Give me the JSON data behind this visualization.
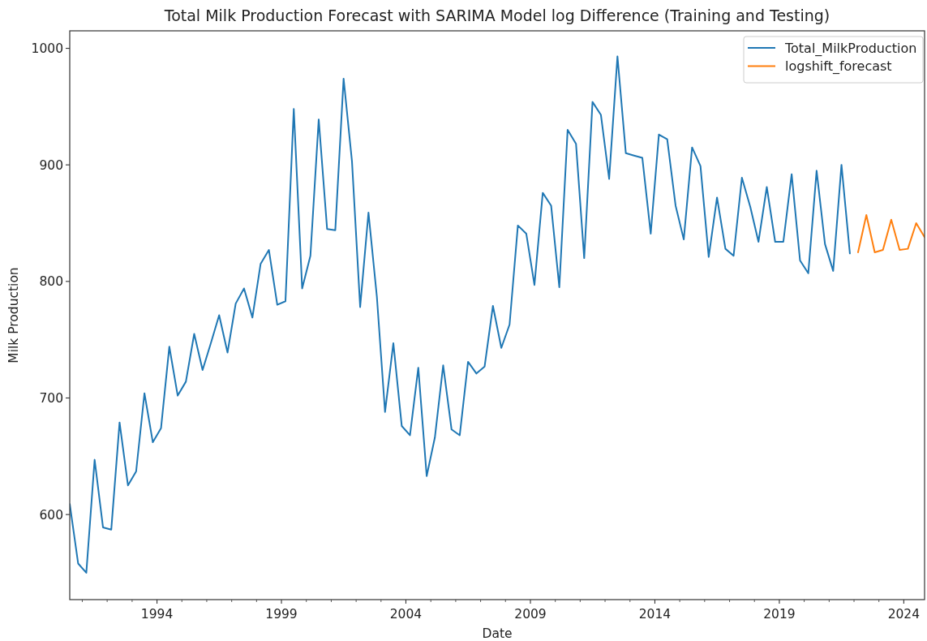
{
  "chart_data": {
    "type": "line",
    "title": "Total Milk Production Forecast with SARIMA Model log Difference (Training and Testing)",
    "xlabel": "Date",
    "ylabel": "Milk Production",
    "xlim": [
      "1990-07",
      "2024-11"
    ],
    "xticks": [
      {
        "value": "1991",
        "label": null
      },
      {
        "value": "1992",
        "label": null
      },
      {
        "value": "1993",
        "label": null
      },
      "1994",
      {
        "value": "1995",
        "label": null
      },
      {
        "value": "1996",
        "label": null
      },
      {
        "value": "1997",
        "label": null
      },
      {
        "value": "1998",
        "label": null
      },
      "1999",
      {
        "value": "2000",
        "label": null
      },
      {
        "value": "2001",
        "label": null
      },
      {
        "value": "2002",
        "label": null
      },
      {
        "value": "2003",
        "label": null
      },
      "2004",
      {
        "value": "2005",
        "label": null
      },
      {
        "value": "2006",
        "label": null
      },
      {
        "value": "2007",
        "label": null
      },
      {
        "value": "2008",
        "label": null
      },
      "2009",
      {
        "value": "2010",
        "label": null
      },
      {
        "value": "2011",
        "label": null
      },
      {
        "value": "2012",
        "label": null
      },
      {
        "value": "2013",
        "label": null
      },
      "2014",
      {
        "value": "2015",
        "label": null
      },
      {
        "value": "2016",
        "label": null
      },
      {
        "value": "2017",
        "label": null
      },
      {
        "value": "2018",
        "label": null
      },
      "2019",
      {
        "value": "2020",
        "label": null
      },
      {
        "value": "2021",
        "label": null
      },
      {
        "value": "2022",
        "label": null
      },
      {
        "value": "2023",
        "label": null
      },
      "2024"
    ],
    "ylim": [
      527,
      1015
    ],
    "yticks": [
      600,
      700,
      800,
      900,
      1000
    ],
    "legend": "top right",
    "series": [
      {
        "name": "Total_MilkProduction",
        "color": "#1f77b4",
        "x": [
          "1990-07",
          "1990-11",
          "1991-03",
          "1991-07",
          "1991-11",
          "1992-03",
          "1992-07",
          "1992-11",
          "1993-03",
          "1993-07",
          "1993-11",
          "1994-03",
          "1994-07",
          "1994-11",
          "1995-03",
          "1995-07",
          "1995-11",
          "1996-03",
          "1996-07",
          "1996-11",
          "1997-03",
          "1997-07",
          "1997-11",
          "1998-03",
          "1998-07",
          "1998-11",
          "1999-03",
          "1999-07",
          "1999-11",
          "2000-03",
          "2000-07",
          "2000-11",
          "2001-03",
          "2001-07",
          "2001-11",
          "2002-03",
          "2002-07",
          "2002-11",
          "2003-03",
          "2003-07",
          "2003-11",
          "2004-03",
          "2004-07",
          "2004-11",
          "2005-03",
          "2005-07",
          "2005-11",
          "2006-03",
          "2006-07",
          "2006-11",
          "2007-03",
          "2007-07",
          "2007-11",
          "2008-03",
          "2008-07",
          "2008-11",
          "2009-03",
          "2009-07",
          "2009-11",
          "2010-03",
          "2010-07",
          "2010-11",
          "2011-03",
          "2011-07",
          "2011-11",
          "2012-03",
          "2012-07",
          "2012-11",
          "2013-03",
          "2013-07",
          "2013-11",
          "2014-03",
          "2014-07",
          "2014-11",
          "2015-03",
          "2015-07",
          "2015-11",
          "2016-03",
          "2016-07",
          "2016-11",
          "2017-03",
          "2017-07",
          "2017-11",
          "2018-03",
          "2018-07",
          "2018-11",
          "2019-03",
          "2019-07",
          "2019-11",
          "2020-03",
          "2020-07",
          "2020-11",
          "2021-03",
          "2021-07",
          "2021-11"
        ],
        "values": [
          609,
          558,
          550,
          647,
          589,
          587,
          679,
          625,
          637,
          704,
          662,
          674,
          744,
          702,
          714,
          755,
          724,
          747,
          771,
          739,
          781,
          794,
          769,
          815,
          827,
          780,
          783,
          948,
          794,
          822,
          939,
          845,
          844,
          974,
          903,
          778,
          859,
          787,
          688,
          747,
          676,
          668,
          726,
          633,
          666,
          728,
          673,
          668,
          731,
          721,
          727,
          779,
          743,
          763,
          848,
          841,
          797,
          876,
          865,
          795,
          930,
          918,
          820,
          954,
          943,
          888,
          993,
          910,
          908,
          906,
          841,
          926,
          922,
          865,
          836,
          915,
          899,
          821,
          872,
          828,
          822,
          889,
          864,
          834,
          881,
          834,
          834,
          892,
          818,
          807,
          895,
          832,
          809,
          900,
          824
        ]
      },
      {
        "name": "logshift_forecast",
        "color": "#ff7f0e",
        "x": [
          "2022-03",
          "2022-07",
          "2022-11",
          "2023-03",
          "2023-07",
          "2023-11",
          "2024-03",
          "2024-07",
          "2024-11"
        ],
        "values": [
          825,
          857,
          825,
          827,
          853,
          827,
          828,
          850,
          838
        ]
      }
    ]
  }
}
